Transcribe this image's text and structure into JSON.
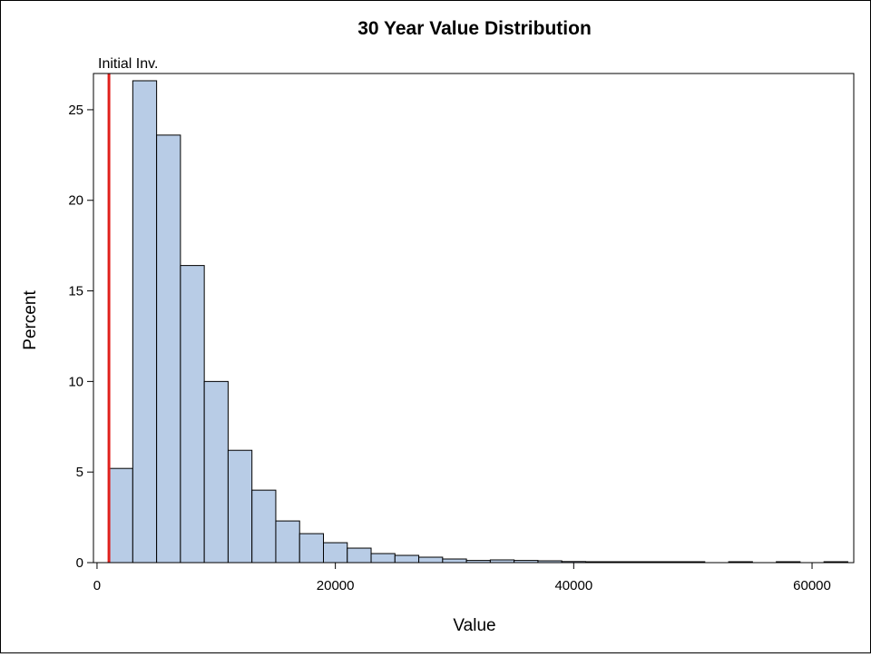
{
  "chart_data": {
    "type": "bar",
    "title": "30 Year Value Distribution",
    "xlabel": "Value",
    "ylabel": "Percent",
    "xlim": [
      -300,
      63500
    ],
    "ylim": [
      0,
      27
    ],
    "bin_width": 2000,
    "bins": [
      {
        "start": 1000,
        "end": 3000,
        "value": 5.2
      },
      {
        "start": 3000,
        "end": 5000,
        "value": 26.6
      },
      {
        "start": 5000,
        "end": 7000,
        "value": 23.6
      },
      {
        "start": 7000,
        "end": 9000,
        "value": 16.4
      },
      {
        "start": 9000,
        "end": 11000,
        "value": 10.0
      },
      {
        "start": 11000,
        "end": 13000,
        "value": 6.2
      },
      {
        "start": 13000,
        "end": 15000,
        "value": 4.0
      },
      {
        "start": 15000,
        "end": 17000,
        "value": 2.3
      },
      {
        "start": 17000,
        "end": 19000,
        "value": 1.6
      },
      {
        "start": 19000,
        "end": 21000,
        "value": 1.1
      },
      {
        "start": 21000,
        "end": 23000,
        "value": 0.8
      },
      {
        "start": 23000,
        "end": 25000,
        "value": 0.5
      },
      {
        "start": 25000,
        "end": 27000,
        "value": 0.4
      },
      {
        "start": 27000,
        "end": 29000,
        "value": 0.3
      },
      {
        "start": 29000,
        "end": 31000,
        "value": 0.2
      },
      {
        "start": 31000,
        "end": 33000,
        "value": 0.12
      },
      {
        "start": 33000,
        "end": 35000,
        "value": 0.15
      },
      {
        "start": 35000,
        "end": 37000,
        "value": 0.12
      },
      {
        "start": 37000,
        "end": 39000,
        "value": 0.1
      },
      {
        "start": 39000,
        "end": 41000,
        "value": 0.06
      },
      {
        "start": 41000,
        "end": 43000,
        "value": 0.05
      },
      {
        "start": 43000,
        "end": 45000,
        "value": 0.05
      },
      {
        "start": 45000,
        "end": 47000,
        "value": 0.04
      },
      {
        "start": 47000,
        "end": 49000,
        "value": 0.04
      },
      {
        "start": 49000,
        "end": 51000,
        "value": 0.03
      },
      {
        "start": 53000,
        "end": 55000,
        "value": 0.03
      },
      {
        "start": 57000,
        "end": 59000,
        "value": 0.02
      },
      {
        "start": 61000,
        "end": 63000,
        "value": 0.02
      }
    ],
    "x_ticks": [
      0,
      20000,
      40000,
      60000
    ],
    "y_ticks": [
      0,
      5,
      10,
      15,
      20,
      25
    ],
    "reference_line": {
      "x": 1000,
      "label": "Initial Inv.",
      "color": "#e0201c"
    },
    "bar_fill": "#b8cce6",
    "bar_stroke": "#000000",
    "grid": false,
    "legend": "none"
  }
}
